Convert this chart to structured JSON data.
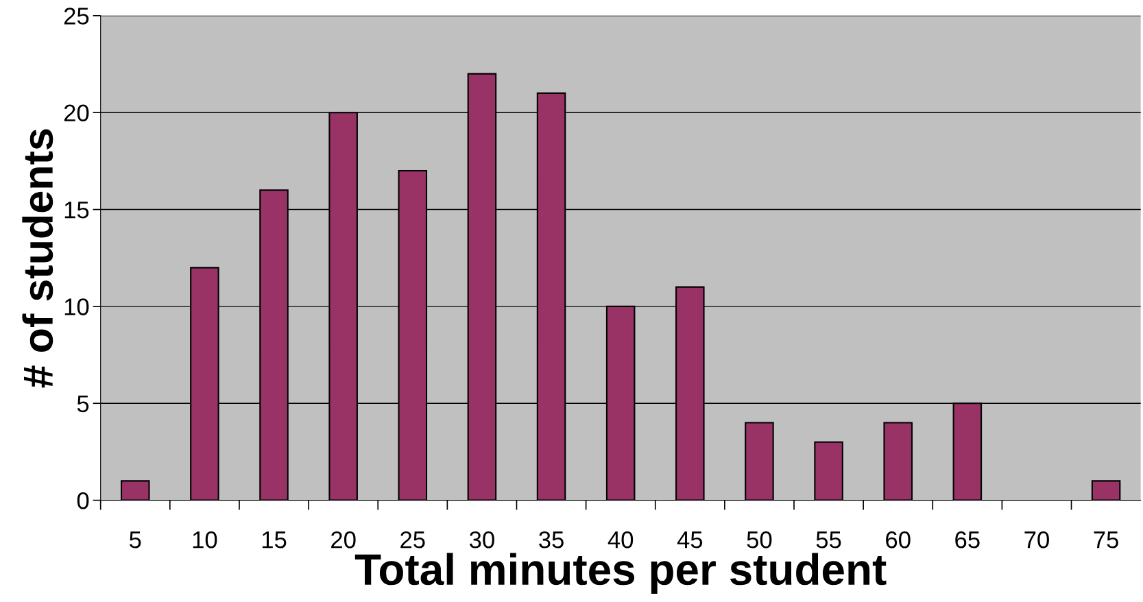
{
  "chart_data": {
    "type": "bar",
    "xlabel": "Total minutes per student",
    "ylabel": "# of students",
    "categories": [
      "5",
      "10",
      "15",
      "20",
      "25",
      "30",
      "35",
      "40",
      "45",
      "50",
      "55",
      "60",
      "65",
      "70",
      "75"
    ],
    "values": [
      1,
      12,
      16,
      20,
      17,
      22,
      21,
      10,
      11,
      4,
      3,
      4,
      5,
      null,
      1
    ],
    "color": "#993366",
    "ylim": [
      0,
      25
    ],
    "yticks": [
      0,
      5,
      10,
      15,
      20,
      25
    ],
    "grid": "y"
  }
}
